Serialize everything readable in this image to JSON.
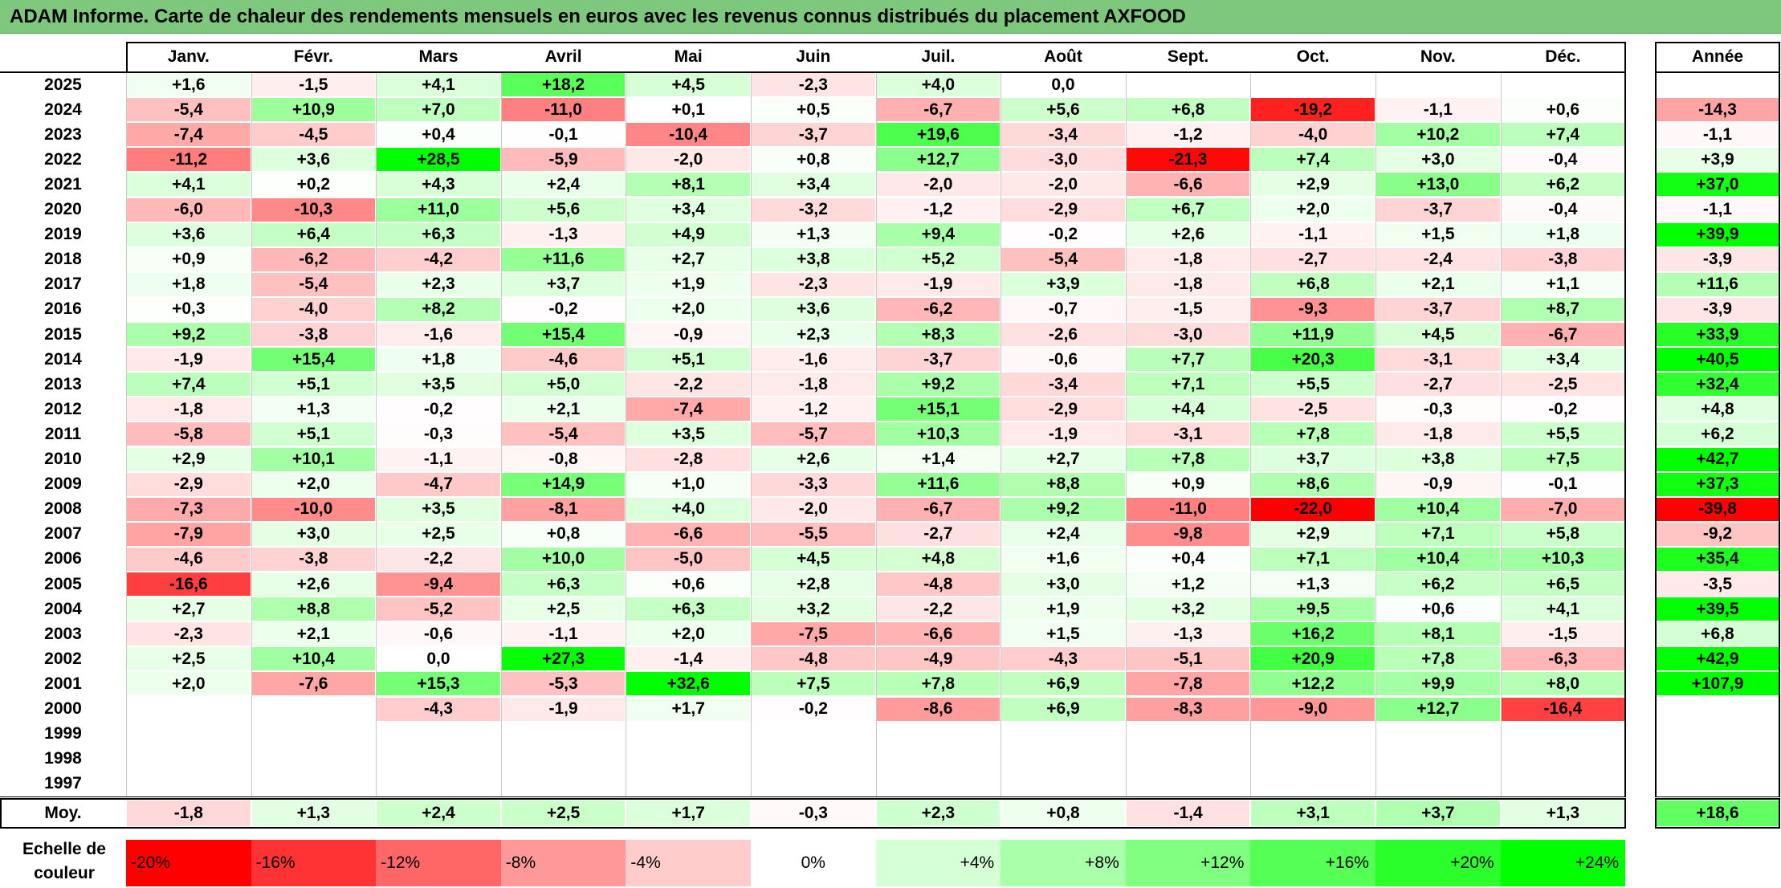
{
  "title": "ADAM Informe. Carte de chaleur des rendements mensuels en euros avec les revenus connus distribués du placement AXFOOD",
  "chart_data": {
    "type": "heatmap",
    "title": "ADAM Informe. Carte de chaleur des rendements mensuels en euros avec les revenus connus distribués du placement AXFOOD",
    "columns": [
      "Janv.",
      "Févr.",
      "Mars",
      "Avril",
      "Mai",
      "Juin",
      "Juil.",
      "Août",
      "Sept.",
      "Oct.",
      "Nov.",
      "Déc."
    ],
    "year_column": "Année",
    "rows": [
      {
        "year": "2025",
        "months": [
          "+1,6",
          "-1,5",
          "+4,1",
          "+18,2",
          "+4,5",
          "-2,3",
          "+4,0",
          "0,0",
          "",
          "",
          "",
          ""
        ],
        "annual": ""
      },
      {
        "year": "2024",
        "months": [
          "-5,4",
          "+10,9",
          "+7,0",
          "-11,0",
          "+0,1",
          "+0,5",
          "-6,7",
          "+5,6",
          "+6,8",
          "-19,2",
          "-1,1",
          "+0,6"
        ],
        "annual": "-14,3"
      },
      {
        "year": "2023",
        "months": [
          "-7,4",
          "-4,5",
          "+0,4",
          "-0,1",
          "-10,4",
          "-3,7",
          "+19,6",
          "-3,4",
          "-1,2",
          "-4,0",
          "+10,2",
          "+7,4"
        ],
        "annual": "-1,1"
      },
      {
        "year": "2022",
        "months": [
          "-11,2",
          "+3,6",
          "+28,5",
          "-5,9",
          "-2,0",
          "+0,8",
          "+12,7",
          "-3,0",
          "-21,3",
          "+7,4",
          "+3,0",
          "-0,4"
        ],
        "annual": "+3,9"
      },
      {
        "year": "2021",
        "months": [
          "+4,1",
          "+0,2",
          "+4,3",
          "+2,4",
          "+8,1",
          "+3,4",
          "-2,0",
          "-2,0",
          "-6,6",
          "+2,9",
          "+13,0",
          "+6,2"
        ],
        "annual": "+37,0"
      },
      {
        "year": "2020",
        "months": [
          "-6,0",
          "-10,3",
          "+11,0",
          "+5,6",
          "+3,4",
          "-3,2",
          "-1,2",
          "-2,9",
          "+6,7",
          "+2,0",
          "-3,7",
          "-0,4"
        ],
        "annual": "-1,1"
      },
      {
        "year": "2019",
        "months": [
          "+3,6",
          "+6,4",
          "+6,3",
          "-1,3",
          "+4,9",
          "+1,3",
          "+9,4",
          "-0,2",
          "+2,6",
          "-1,1",
          "+1,5",
          "+1,8"
        ],
        "annual": "+39,9"
      },
      {
        "year": "2018",
        "months": [
          "+0,9",
          "-6,2",
          "-4,2",
          "+11,6",
          "+2,7",
          "+3,8",
          "+5,2",
          "-5,4",
          "-1,8",
          "-2,7",
          "-2,4",
          "-3,8"
        ],
        "annual": "-3,9"
      },
      {
        "year": "2017",
        "months": [
          "+1,8",
          "-5,4",
          "+2,3",
          "+3,7",
          "+1,9",
          "-2,3",
          "-1,9",
          "+3,9",
          "-1,8",
          "+6,8",
          "+2,1",
          "+1,1"
        ],
        "annual": "+11,6"
      },
      {
        "year": "2016",
        "months": [
          "+0,3",
          "-4,0",
          "+8,2",
          "-0,2",
          "+2,0",
          "+3,6",
          "-6,2",
          "-0,7",
          "-1,5",
          "-9,3",
          "-3,7",
          "+8,7"
        ],
        "annual": "-3,9"
      },
      {
        "year": "2015",
        "months": [
          "+9,2",
          "-3,8",
          "-1,6",
          "+15,4",
          "-0,9",
          "+2,3",
          "+8,3",
          "-2,6",
          "-3,0",
          "+11,9",
          "+4,5",
          "-6,7"
        ],
        "annual": "+33,9"
      },
      {
        "year": "2014",
        "months": [
          "-1,9",
          "+15,4",
          "+1,8",
          "-4,6",
          "+5,1",
          "-1,6",
          "-3,7",
          "-0,6",
          "+7,7",
          "+20,3",
          "-3,1",
          "+3,4"
        ],
        "annual": "+40,5"
      },
      {
        "year": "2013",
        "months": [
          "+7,4",
          "+5,1",
          "+3,5",
          "+5,0",
          "-2,2",
          "-1,8",
          "+9,2",
          "-3,4",
          "+7,1",
          "+5,5",
          "-2,7",
          "-2,5"
        ],
        "annual": "+32,4"
      },
      {
        "year": "2012",
        "months": [
          "-1,8",
          "+1,3",
          "-0,2",
          "+2,1",
          "-7,4",
          "-1,2",
          "+15,1",
          "-2,9",
          "+4,4",
          "-2,5",
          "-0,3",
          "-0,2"
        ],
        "annual": "+4,8"
      },
      {
        "year": "2011",
        "months": [
          "-5,8",
          "+5,1",
          "-0,3",
          "-5,4",
          "+3,5",
          "-5,7",
          "+10,3",
          "-1,9",
          "-3,1",
          "+7,8",
          "-1,8",
          "+5,5"
        ],
        "annual": "+6,2"
      },
      {
        "year": "2010",
        "months": [
          "+2,9",
          "+10,1",
          "-1,1",
          "-0,8",
          "-2,8",
          "+2,6",
          "+1,4",
          "+2,7",
          "+7,8",
          "+3,7",
          "+3,8",
          "+7,5"
        ],
        "annual": "+42,7"
      },
      {
        "year": "2009",
        "months": [
          "-2,9",
          "+2,0",
          "-4,7",
          "+14,9",
          "+1,0",
          "-3,3",
          "+11,6",
          "+8,8",
          "+0,9",
          "+8,6",
          "-0,9",
          "-0,1"
        ],
        "annual": "+37,3"
      },
      {
        "year": "2008",
        "months": [
          "-7,3",
          "-10,0",
          "+3,5",
          "-8,1",
          "+4,0",
          "-2,0",
          "-6,7",
          "+9,2",
          "-11,0",
          "-22,0",
          "+10,4",
          "-7,0"
        ],
        "annual": "-39,8"
      },
      {
        "year": "2007",
        "months": [
          "-7,9",
          "+3,0",
          "+2,5",
          "+0,8",
          "-6,6",
          "-5,5",
          "-2,7",
          "+2,4",
          "-9,8",
          "+2,9",
          "+7,1",
          "+5,8"
        ],
        "annual": "-9,2"
      },
      {
        "year": "2006",
        "months": [
          "-4,6",
          "-3,8",
          "-2,2",
          "+10,0",
          "-5,0",
          "+4,5",
          "+4,8",
          "+1,6",
          "+0,4",
          "+7,1",
          "+10,4",
          "+10,3"
        ],
        "annual": "+35,4"
      },
      {
        "year": "2005",
        "months": [
          "-16,6",
          "+2,6",
          "-9,4",
          "+6,3",
          "+0,6",
          "+2,8",
          "-4,8",
          "+3,0",
          "+1,2",
          "+1,3",
          "+6,2",
          "+6,5"
        ],
        "annual": "-3,5"
      },
      {
        "year": "2004",
        "months": [
          "+2,7",
          "+8,8",
          "-5,2",
          "+2,5",
          "+6,3",
          "+3,2",
          "-2,2",
          "+1,9",
          "+3,2",
          "+9,5",
          "+0,6",
          "+4,1"
        ],
        "annual": "+39,5"
      },
      {
        "year": "2003",
        "months": [
          "-2,3",
          "+2,1",
          "-0,6",
          "-1,1",
          "+2,0",
          "-7,5",
          "-6,6",
          "+1,5",
          "-1,3",
          "+16,2",
          "+8,1",
          "-1,5"
        ],
        "annual": "+6,8"
      },
      {
        "year": "2002",
        "months": [
          "+2,5",
          "+10,4",
          "0,0",
          "+27,3",
          "-1,4",
          "-4,8",
          "-4,9",
          "-4,3",
          "-5,1",
          "+20,9",
          "+7,8",
          "-6,3"
        ],
        "annual": "+42,9"
      },
      {
        "year": "2001",
        "months": [
          "+2,0",
          "-7,6",
          "+15,3",
          "-5,3",
          "+32,6",
          "+7,5",
          "+7,8",
          "+6,9",
          "-7,8",
          "+12,2",
          "+9,9",
          "+8,0"
        ],
        "annual": "+107,9"
      },
      {
        "year": "2000",
        "months": [
          "",
          "",
          "-4,3",
          "-1,9",
          "+1,7",
          "-0,2",
          "-8,6",
          "+6,9",
          "-8,3",
          "-9,0",
          "+12,7",
          "-16,4"
        ],
        "annual": ""
      },
      {
        "year": "1999",
        "months": [
          "",
          "",
          "",
          "",
          "",
          "",
          "",
          "",
          "",
          "",
          "",
          ""
        ],
        "annual": ""
      },
      {
        "year": "1998",
        "months": [
          "",
          "",
          "",
          "",
          "",
          "",
          "",
          "",
          "",
          "",
          "",
          ""
        ],
        "annual": ""
      },
      {
        "year": "1997",
        "months": [
          "",
          "",
          "",
          "",
          "",
          "",
          "",
          "",
          "",
          "",
          "",
          ""
        ],
        "annual": ""
      }
    ],
    "average": {
      "label": "Moy.",
      "months": [
        "-1,8",
        "+1,3",
        "+2,4",
        "+2,5",
        "+1,7",
        "-0,3",
        "+2,3",
        "+0,8",
        "-1,4",
        "+3,1",
        "+3,7",
        "+1,3"
      ],
      "annual": "+18,6"
    },
    "color_scale": {
      "label": "Echelle de couleur",
      "steps": [
        "-20%",
        "-16%",
        "-12%",
        "-8%",
        "-4%",
        "0%",
        "+4%",
        "+8%",
        "+12%",
        "+16%",
        "+20%",
        "+24%"
      ],
      "step_values": [
        -20,
        -16,
        -12,
        -8,
        -4,
        0,
        4,
        8,
        12,
        16,
        20,
        24
      ],
      "negative_color": "#ff0000",
      "positive_color": "#00ff00",
      "neutral_color": "#ffffff"
    }
  }
}
